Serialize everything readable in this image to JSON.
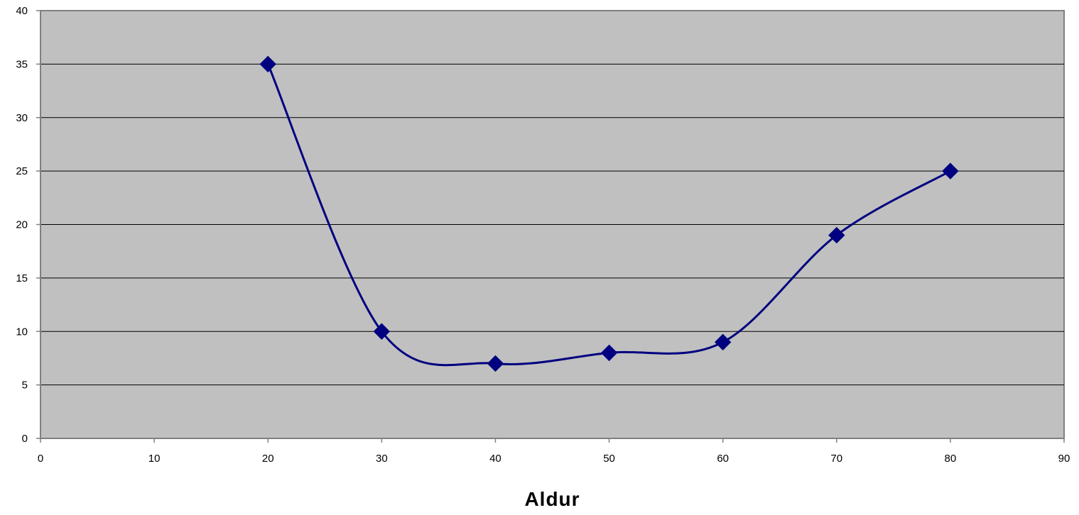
{
  "chart_data": {
    "type": "scatter",
    "title": "",
    "xlabel": "Aldur",
    "ylabel": "",
    "xlim": [
      0,
      90
    ],
    "ylim": [
      0,
      40
    ],
    "x_ticks": [
      0,
      10,
      20,
      30,
      40,
      50,
      60,
      70,
      80,
      90
    ],
    "y_ticks": [
      0,
      5,
      10,
      15,
      20,
      25,
      30,
      35,
      40
    ],
    "grid": "horizontal",
    "legend": "none",
    "line_style": "smoothed",
    "series": [
      {
        "x": [
          20,
          30,
          40,
          50,
          60,
          70,
          80
        ],
        "y": [
          35,
          10,
          7,
          8,
          9,
          19,
          25
        ],
        "marker": "diamond",
        "color": "#000080"
      }
    ],
    "colors": {
      "plot_background": "#c0c0c0",
      "gridline": "#000000",
      "axis": "#808080",
      "series": "#000080"
    }
  }
}
